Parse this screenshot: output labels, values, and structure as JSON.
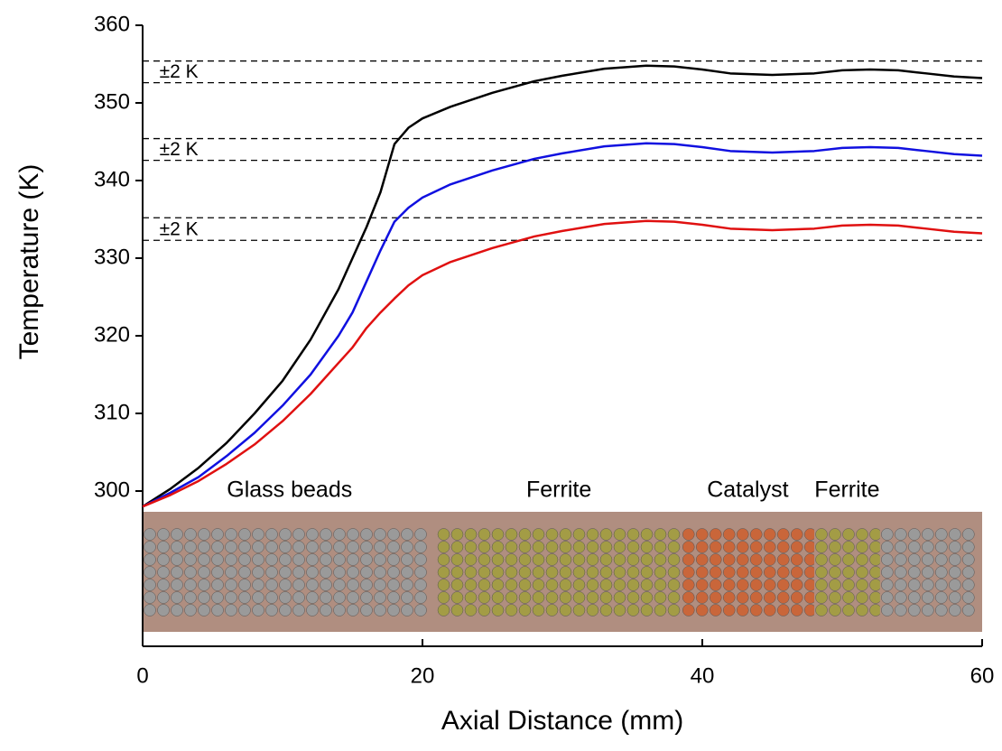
{
  "chart_data": {
    "type": "line",
    "xlabel": "Axial Distance (mm)",
    "ylabel": "Temperature (K)",
    "x": [
      0,
      2,
      4,
      6,
      8,
      10,
      12,
      14,
      15,
      16,
      17,
      18,
      19,
      20,
      22,
      25,
      28,
      30,
      33,
      36,
      38,
      40,
      42,
      45,
      48,
      50,
      52,
      54,
      56,
      58,
      60
    ],
    "series": [
      {
        "color": "#000000",
        "values": [
          298,
          300.3,
          303,
          306.2,
          310,
          314.2,
          319.5,
          326,
          330,
          334,
          338.5,
          344.7,
          346.8,
          348,
          349.5,
          351.3,
          352.8,
          353.5,
          354.4,
          354.8,
          354.7,
          354.3,
          353.8,
          353.6,
          353.8,
          354.2,
          354.3,
          354.2,
          353.8,
          353.4,
          353.2
        ]
      },
      {
        "color": "#1010e0",
        "values": [
          298,
          299.8,
          301.8,
          304.5,
          307.5,
          311,
          315,
          320,
          323,
          327,
          331,
          334.7,
          336.5,
          337.8,
          339.5,
          341.3,
          342.8,
          343.5,
          344.4,
          344.8,
          344.7,
          344.3,
          343.8,
          343.6,
          343.8,
          344.2,
          344.3,
          344.2,
          343.8,
          343.4,
          343.2
        ]
      },
      {
        "color": "#e01010",
        "values": [
          298,
          299.5,
          301.3,
          303.5,
          306,
          309,
          312.5,
          316.5,
          318.5,
          321,
          323,
          324.8,
          326.5,
          327.8,
          329.5,
          331.3,
          332.8,
          333.5,
          334.4,
          334.8,
          334.7,
          334.3,
          333.8,
          333.6,
          333.8,
          334.2,
          334.3,
          334.2,
          333.8,
          333.4,
          333.2
        ]
      }
    ],
    "xlim": [
      0,
      60
    ],
    "xticks": [
      0,
      20,
      40,
      60
    ],
    "ylim": [
      280,
      360
    ],
    "yticks": [
      300,
      310,
      320,
      330,
      340,
      350,
      360
    ],
    "tolerance_bands": [
      {
        "label": "±2 K",
        "upper": 355.4,
        "lower": 352.6
      },
      {
        "label": "±2 K",
        "upper": 345.4,
        "lower": 342.6
      },
      {
        "label": "±2 K",
        "upper": 335.2,
        "lower": 332.3
      }
    ],
    "regions": [
      {
        "label": "Glass beads",
        "start": 0,
        "end": 21,
        "color": "#9a9a9a"
      },
      {
        "label": "Ferrite",
        "start": 21,
        "end": 38.5,
        "color": "#a39c45"
      },
      {
        "label": "Catalyst",
        "start": 38.5,
        "end": 48,
        "color": "#c9663a"
      },
      {
        "label": "Ferrite",
        "start": 48,
        "end": 52.7,
        "color": "#a39c45"
      },
      {
        "start": 52.7,
        "end": 60,
        "color": "#9a9a9a"
      }
    ]
  }
}
